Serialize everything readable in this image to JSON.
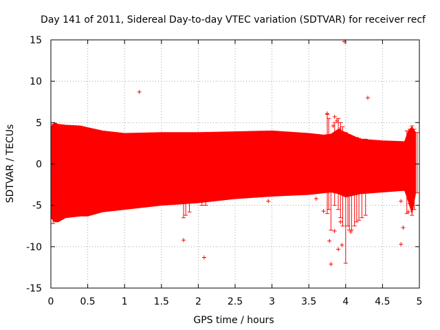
{
  "chart_data": {
    "type": "scatter",
    "title": "Day 141 of 2011, Sidereal Day-to-day VTEC variation (SDTVAR) for receiver recf",
    "xlabel": "GPS time / hours",
    "ylabel": "SDTVAR / TECUs",
    "xlim": [
      0,
      5
    ],
    "ylim": [
      -15,
      15
    ],
    "x_ticks": [
      "0",
      "0.5",
      "1",
      "1.5",
      "2",
      "2.5",
      "3",
      "3.5",
      "4",
      "4.5",
      "5"
    ],
    "y_ticks": [
      "-15",
      "-10",
      "-5",
      "0",
      "5",
      "10",
      "15"
    ],
    "grid": true,
    "color": "#ff0000",
    "marker": "+",
    "band": [
      {
        "x": 0.0,
        "low": -6.5,
        "high": 4.5
      },
      {
        "x": 0.05,
        "low": -7.0,
        "high": 5.0
      },
      {
        "x": 0.1,
        "low": -7.0,
        "high": 4.8
      },
      {
        "x": 0.2,
        "low": -6.5,
        "high": 4.7
      },
      {
        "x": 0.4,
        "low": -6.3,
        "high": 4.6
      },
      {
        "x": 0.5,
        "low": -6.3,
        "high": 4.4
      },
      {
        "x": 0.7,
        "low": -5.8,
        "high": 4.0
      },
      {
        "x": 1.0,
        "low": -5.5,
        "high": 3.7
      },
      {
        "x": 1.5,
        "low": -5.0,
        "high": 3.8
      },
      {
        "x": 2.0,
        "low": -4.7,
        "high": 3.8
      },
      {
        "x": 2.5,
        "low": -4.2,
        "high": 3.9
      },
      {
        "x": 3.0,
        "low": -3.9,
        "high": 4.0
      },
      {
        "x": 3.5,
        "low": -3.7,
        "high": 3.7
      },
      {
        "x": 3.7,
        "low": -3.5,
        "high": 3.5
      },
      {
        "x": 3.8,
        "low": -3.4,
        "high": 3.6
      },
      {
        "x": 3.9,
        "low": -3.6,
        "high": 4.2
      },
      {
        "x": 4.0,
        "low": -4.0,
        "high": 3.8
      },
      {
        "x": 4.2,
        "low": -3.6,
        "high": 3.0
      },
      {
        "x": 4.5,
        "low": -3.4,
        "high": 2.8
      },
      {
        "x": 4.8,
        "low": -3.2,
        "high": 2.7
      },
      {
        "x": 4.85,
        "low": -4.5,
        "high": 4.0
      },
      {
        "x": 4.9,
        "low": -6.0,
        "high": 4.5
      },
      {
        "x": 4.95,
        "low": -3.5,
        "high": 3.8
      }
    ],
    "spikes": [
      {
        "x": 0.03,
        "low": -7.2,
        "high": 4.8
      },
      {
        "x": 1.8,
        "low": -6.5,
        "high": -4.2
      },
      {
        "x": 1.83,
        "low": -6.2,
        "high": -4.0
      },
      {
        "x": 1.88,
        "low": -5.8,
        "high": -4.0
      },
      {
        "x": 2.05,
        "low": -5.0,
        "high": -4.2
      },
      {
        "x": 2.1,
        "low": -5.0,
        "high": -4.3
      },
      {
        "x": 3.75,
        "low": -6.0,
        "high": 6.0
      },
      {
        "x": 3.77,
        "low": -5.5,
        "high": 5.5
      },
      {
        "x": 3.8,
        "low": -8.0,
        "high": 3.5
      },
      {
        "x": 3.85,
        "low": -5.0,
        "high": 5.0
      },
      {
        "x": 3.9,
        "low": -5.5,
        "high": 5.5
      },
      {
        "x": 3.93,
        "low": -6.5,
        "high": 5.0
      },
      {
        "x": 3.96,
        "low": -7.5,
        "high": 4.5
      },
      {
        "x": 4.0,
        "low": -12.0,
        "high": 3.8
      },
      {
        "x": 4.03,
        "low": -7.5,
        "high": 3.5
      },
      {
        "x": 4.05,
        "low": -8.0,
        "high": 3.3
      },
      {
        "x": 4.08,
        "low": -8.0,
        "high": 3.3
      },
      {
        "x": 4.12,
        "low": -7.5,
        "high": 3.2
      },
      {
        "x": 4.15,
        "low": -7.0,
        "high": 3.2
      },
      {
        "x": 4.18,
        "low": -6.8,
        "high": 3.1
      },
      {
        "x": 4.22,
        "low": -6.5,
        "high": 3.0
      },
      {
        "x": 4.27,
        "low": -6.2,
        "high": 3.0
      },
      {
        "x": 4.83,
        "low": -6.0,
        "high": 4.0
      },
      {
        "x": 4.87,
        "low": -4.8,
        "high": 4.2
      },
      {
        "x": 4.9,
        "low": -6.2,
        "high": 4.6
      },
      {
        "x": 4.93,
        "low": -5.5,
        "high": 4.2
      },
      {
        "x": 4.97,
        "low": -3.5,
        "high": 3.8
      }
    ],
    "outliers": [
      {
        "x": 3.98,
        "y": 14.8
      },
      {
        "x": 1.2,
        "y": 8.7
      },
      {
        "x": 4.3,
        "y": 8.0
      },
      {
        "x": 3.75,
        "y": 6.1
      },
      {
        "x": 3.85,
        "y": 5.7
      },
      {
        "x": 3.88,
        "y": 5.2
      },
      {
        "x": 3.83,
        "y": 4.6
      },
      {
        "x": 3.92,
        "y": 4.2
      },
      {
        "x": 1.8,
        "y": -9.2
      },
      {
        "x": 2.08,
        "y": -11.3
      },
      {
        "x": 3.78,
        "y": -9.3
      },
      {
        "x": 3.8,
        "y": -12.1
      },
      {
        "x": 3.9,
        "y": -10.3
      },
      {
        "x": 3.95,
        "y": -9.8
      },
      {
        "x": 3.85,
        "y": -8.1
      },
      {
        "x": 3.93,
        "y": -7.0
      },
      {
        "x": 3.7,
        "y": -5.7
      },
      {
        "x": 3.6,
        "y": -4.2
      },
      {
        "x": 2.95,
        "y": -4.5
      },
      {
        "x": 4.75,
        "y": -9.7
      },
      {
        "x": 4.78,
        "y": -7.7
      },
      {
        "x": 4.75,
        "y": -4.5
      },
      {
        "x": 4.85,
        "y": -5.8
      },
      {
        "x": 4.07,
        "y": -8.2
      }
    ]
  }
}
